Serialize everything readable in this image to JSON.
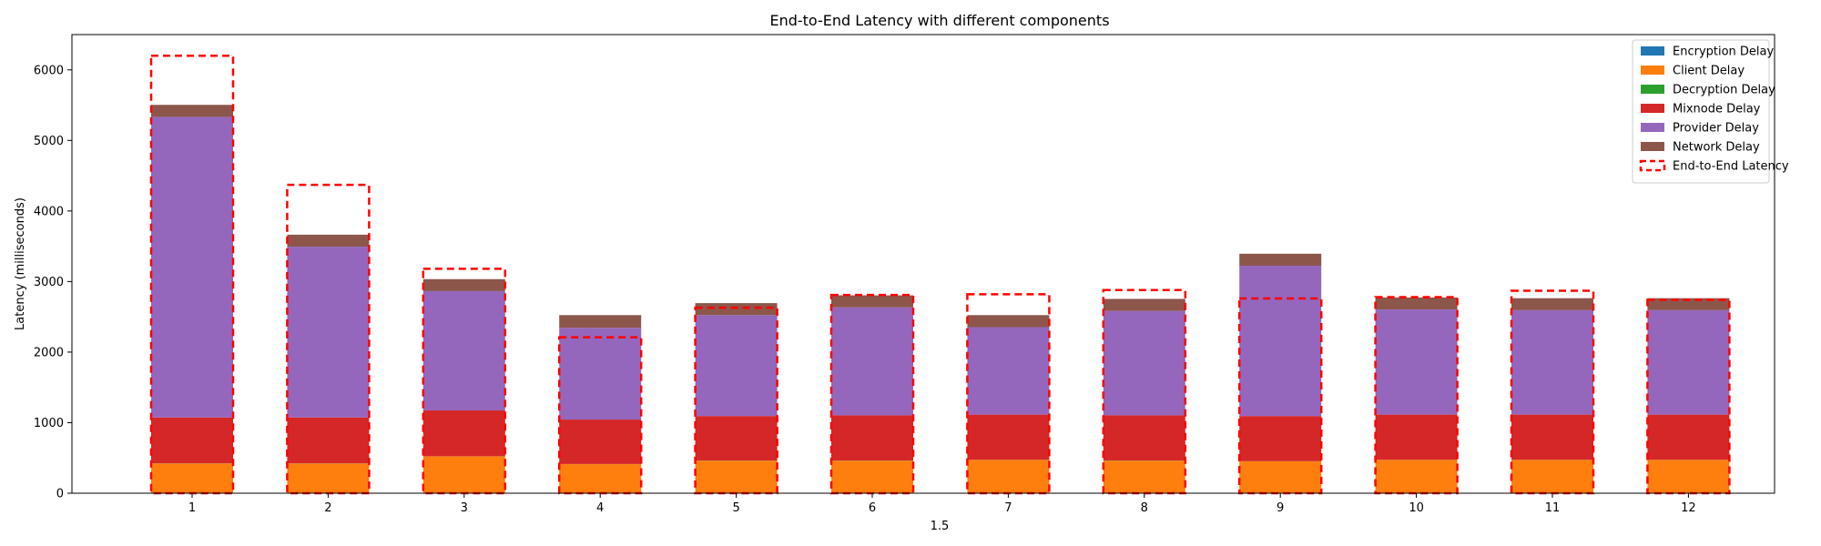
{
  "chart_data": {
    "type": "bar",
    "stacked": true,
    "title": "End-to-End Latency with different components",
    "xlabel": "1.5",
    "ylabel": "Latency (milliseconds)",
    "ylim": [
      0,
      6500
    ],
    "yticks": [
      0,
      1000,
      2000,
      3000,
      4000,
      5000,
      6000
    ],
    "categories": [
      "1",
      "2",
      "3",
      "4",
      "5",
      "6",
      "7",
      "8",
      "9",
      "10",
      "11",
      "12"
    ],
    "series": [
      {
        "name": "Encryption Delay",
        "color": "#1f77b4",
        "values": [
          2,
          2,
          2,
          2,
          2,
          2,
          2,
          2,
          2,
          2,
          2,
          2
        ]
      },
      {
        "name": "Client Delay",
        "color": "#ff7f0e",
        "values": [
          420,
          420,
          520,
          410,
          460,
          460,
          470,
          460,
          450,
          470,
          470,
          470
        ]
      },
      {
        "name": "Decryption Delay",
        "color": "#2ca02c",
        "values": [
          2,
          2,
          2,
          2,
          2,
          2,
          2,
          2,
          2,
          2,
          2,
          2
        ]
      },
      {
        "name": "Mixnode Delay",
        "color": "#d62728",
        "values": [
          650,
          650,
          650,
          630,
          630,
          640,
          640,
          640,
          640,
          640,
          640,
          640
        ]
      },
      {
        "name": "Provider Delay",
        "color": "#9467bd",
        "values": [
          4260,
          2420,
          1690,
          1300,
          1430,
          1530,
          1240,
          1480,
          2130,
          1490,
          1480,
          1480
        ]
      },
      {
        "name": "Network Delay",
        "color": "#8c564b",
        "values": [
          170,
          170,
          170,
          180,
          170,
          170,
          170,
          170,
          170,
          170,
          170,
          170
        ]
      }
    ],
    "end_to_end": {
      "name": "End-to-End Latency",
      "color": "#ff0000",
      "values": [
        6200,
        4370,
        3180,
        2210,
        2630,
        2810,
        2820,
        2880,
        2760,
        2780,
        2870,
        2740
      ]
    },
    "legend_position": "top-right",
    "grid": false
  }
}
